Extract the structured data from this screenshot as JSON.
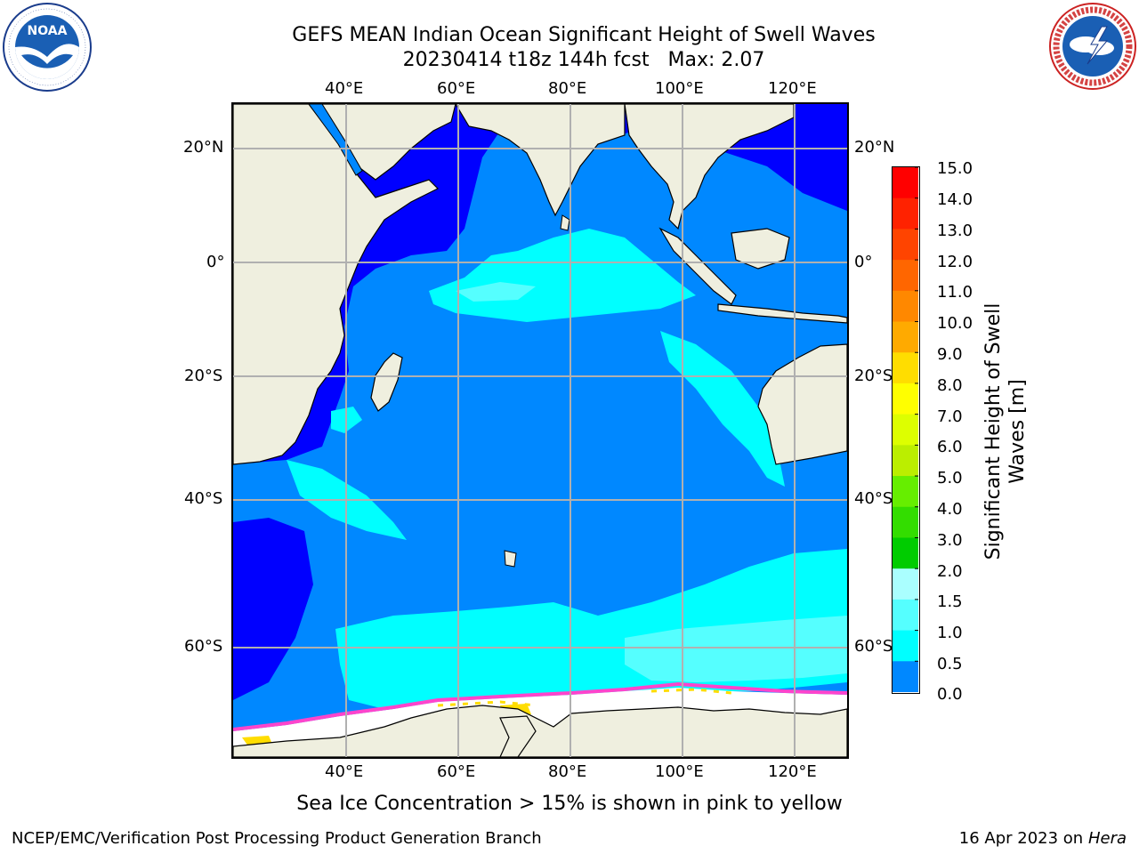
{
  "title": {
    "line1": "GEFS MEAN Indian Ocean Significant Height of Swell Waves",
    "line2": "20230414 t18z 144h fcst   Max: 2.07"
  },
  "logos": {
    "left": {
      "name": "NOAA",
      "text": "NOAA",
      "ring_text": "NATIONAL OCEANIC AND ATMOSPHERIC ADMINISTRATION · U.S. DEPARTMENT OF COMMERCE"
    },
    "right": {
      "name": "National Weather Service",
      "ring_text": "NATIONAL WEATHER SERVICE"
    }
  },
  "map": {
    "lon_labels": [
      "40°E",
      "60°E",
      "80°E",
      "100°E",
      "120°E"
    ],
    "lat_labels_left": [
      "20°N",
      "0°",
      "20°S",
      "40°S",
      "60°S"
    ],
    "lat_labels_right": [
      "20°N",
      "0°",
      "20°S",
      "40°S",
      "60°S"
    ],
    "colors": {
      "land": "#efefdf",
      "ice": "#ffffff",
      "grid": "#b0b0b0",
      "coast": "#000000"
    }
  },
  "colorbar": {
    "label": "Significant Height of Swell Waves [m]",
    "ticks": [
      "15.0",
      "14.0",
      "13.0",
      "12.0",
      "11.0",
      "10.0",
      "9.0",
      "8.0",
      "7.0",
      "6.0",
      "5.0",
      "4.0",
      "3.0",
      "2.0",
      "1.5",
      "1.0",
      "0.5",
      "0.0"
    ],
    "colors_top_to_bottom": [
      "#ff0000",
      "#ff2200",
      "#ff4400",
      "#ff6600",
      "#ff8800",
      "#ffaa00",
      "#ffdd00",
      "#ffff00",
      "#ddff00",
      "#bbee00",
      "#66ee00",
      "#33dd00",
      "#00cc00",
      "#55ff88",
      "#aaffff",
      "#55ffff",
      "#00ffff",
      "#0088ff",
      "#0000ff"
    ]
  },
  "notes": {
    "sea_ice": "Sea Ice Concentration > 15% is shown in pink to yellow"
  },
  "footer": {
    "left": "NCEP/EMC/Verification Post Processing Product Generation Branch",
    "right_date": "16 Apr 2023 on ",
    "right_machine": "Hera"
  }
}
